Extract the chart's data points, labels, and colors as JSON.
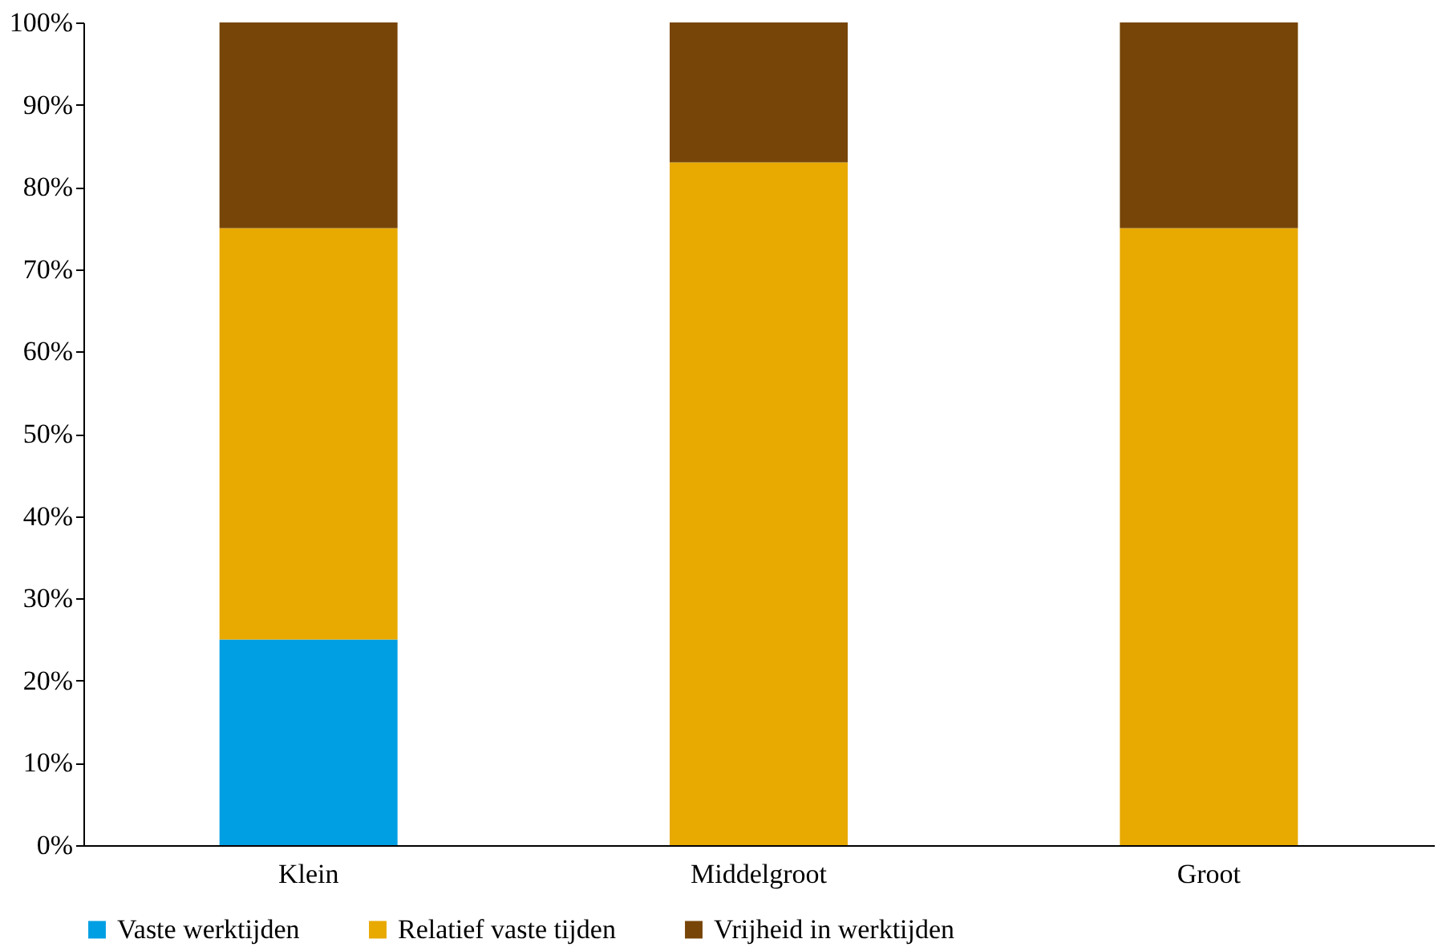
{
  "chart_data": {
    "type": "bar",
    "stacked": true,
    "categories": [
      "Klein",
      "Middelgroot",
      "Groot"
    ],
    "series": [
      {
        "name": "Vaste werktijden",
        "color": "#009fe3",
        "values": [
          25,
          0,
          0
        ]
      },
      {
        "name": "Relatief vaste tijden",
        "color": "#e8a900",
        "values": [
          50,
          83,
          75
        ]
      },
      {
        "name": "Vrijheid in werktijden",
        "color": "#774508",
        "values": [
          25,
          17,
          25
        ]
      }
    ],
    "ylim": [
      0,
      100
    ],
    "yticks": [
      {
        "value": 0,
        "label": "0%"
      },
      {
        "value": 10,
        "label": "10%"
      },
      {
        "value": 20,
        "label": "20%"
      },
      {
        "value": 30,
        "label": "30%"
      },
      {
        "value": 40,
        "label": "40%"
      },
      {
        "value": 50,
        "label": "50%"
      },
      {
        "value": 60,
        "label": "60%"
      },
      {
        "value": 70,
        "label": "70%"
      },
      {
        "value": 80,
        "label": "80%"
      },
      {
        "value": 90,
        "label": "90%"
      },
      {
        "value": 100,
        "label": "100%"
      }
    ],
    "grid": false,
    "legend": "bottom"
  }
}
